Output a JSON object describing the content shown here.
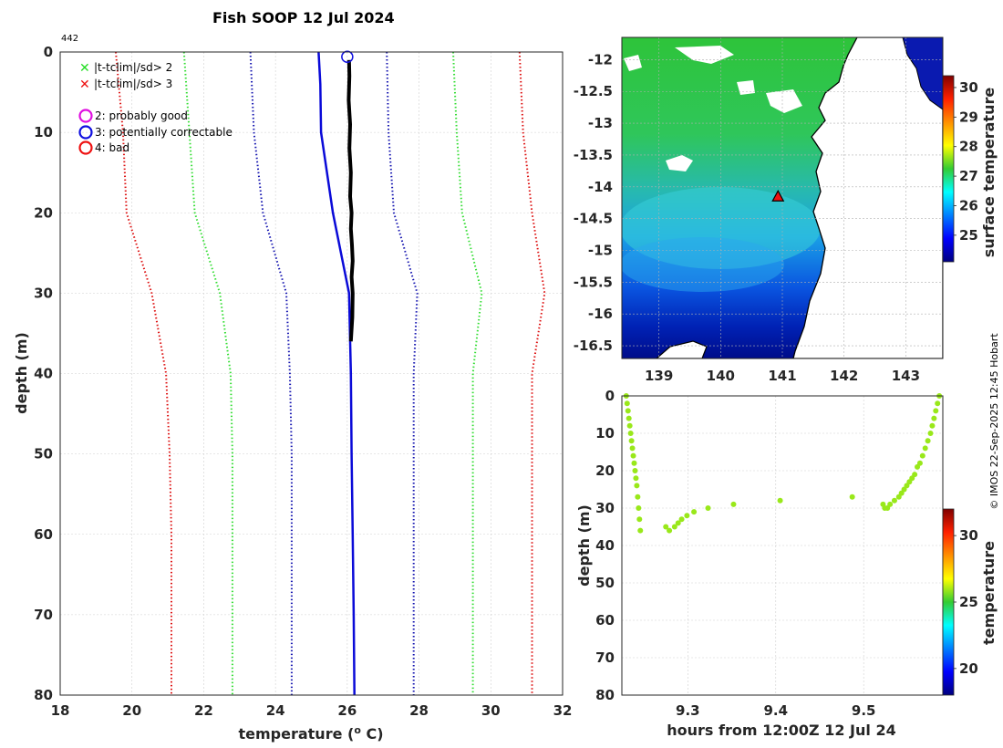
{
  "title": "Fish SOOP 12 Jul 2024",
  "profile_id": "442",
  "credit": "© IMOS 22-Sep-2025 12:45 Hobart",
  "legend": {
    "flags": [
      {
        "label": "|t-tclim|/sd> 2",
        "color": "#22dd22",
        "marker": "x"
      },
      {
        "label": "|t-tclim|/sd> 3",
        "color": "#ee1111",
        "marker": "x"
      }
    ],
    "qc": [
      {
        "label": "2: probably good",
        "color": "#e010e0"
      },
      {
        "label": "3: potentially correctable",
        "color": "#1010e0"
      },
      {
        "label": "4: bad",
        "color": "#ee1111"
      }
    ]
  },
  "colors": {
    "red": "#dd1111",
    "green": "#33dd33",
    "blue_dot": "#1515b0",
    "blue": "#0a0ad8",
    "black": "#000000",
    "scatter": "#99e81a",
    "grid": "#d0d0d0"
  },
  "chart_data": [
    {
      "id": "profile",
      "type": "line",
      "xlabel": "temperature (o C)",
      "ylabel": "depth (m)",
      "xlim": [
        18,
        32
      ],
      "ylim": [
        80,
        0
      ],
      "xticks": [
        18,
        20,
        22,
        24,
        26,
        28,
        30,
        32
      ],
      "yticks": [
        0,
        10,
        20,
        30,
        40,
        50,
        60,
        70,
        80
      ],
      "grid": true,
      "series": [
        {
          "name": "clim -3sd",
          "style": "dotted",
          "color": "red",
          "x": [
            19.55,
            19.75,
            19.85,
            20.55,
            20.95,
            21.05,
            21.1,
            21.1
          ],
          "y": [
            0,
            10,
            20,
            30,
            40,
            50,
            60,
            80
          ]
        },
        {
          "name": "clim -2sd",
          "style": "dotted",
          "color": "green",
          "x": [
            21.45,
            21.6,
            21.75,
            22.45,
            22.75,
            22.8,
            22.8,
            22.8
          ],
          "y": [
            0,
            10,
            20,
            30,
            40,
            50,
            60,
            80
          ]
        },
        {
          "name": "clim -1sd",
          "style": "dotted",
          "color": "blue_dot",
          "x": [
            23.3,
            23.4,
            23.65,
            24.3,
            24.4,
            24.45,
            24.45,
            24.45
          ],
          "y": [
            0,
            10,
            20,
            30,
            40,
            50,
            60,
            80
          ]
        },
        {
          "name": "climatology",
          "style": "solid",
          "color": "blue",
          "x": [
            25.2,
            25.25,
            25.27,
            25.6,
            26.05,
            26.1,
            26.12,
            26.15,
            26.18,
            26.2
          ],
          "y": [
            0,
            4,
            10,
            20,
            30,
            40,
            50,
            60,
            70,
            80
          ]
        },
        {
          "name": "clim +1sd",
          "style": "dotted",
          "color": "blue_dot",
          "x": [
            27.1,
            27.15,
            27.3,
            27.95,
            27.85,
            27.85,
            27.85,
            27.85
          ],
          "y": [
            0,
            10,
            20,
            30,
            40,
            50,
            60,
            80
          ]
        },
        {
          "name": "clim +2sd",
          "style": "dotted",
          "color": "green",
          "x": [
            28.95,
            29.05,
            29.2,
            29.75,
            29.5,
            29.5,
            29.5,
            29.5
          ],
          "y": [
            0,
            10,
            20,
            30,
            40,
            50,
            60,
            80
          ]
        },
        {
          "name": "clim +3sd",
          "style": "dotted",
          "color": "red",
          "x": [
            30.8,
            30.9,
            31.15,
            31.5,
            31.15,
            31.15,
            31.15,
            31.15
          ],
          "y": [
            0,
            10,
            20,
            30,
            40,
            50,
            60,
            80
          ]
        },
        {
          "name": "observed",
          "style": "thick",
          "color": "black",
          "x": [
            26.05,
            26.06,
            26.04,
            26.08,
            26.06,
            26.1,
            26.08,
            26.12,
            26.1,
            26.13,
            26.15,
            26.12,
            26.15,
            26.14,
            26.1
          ],
          "y": [
            1,
            3,
            6,
            9,
            12,
            15,
            18,
            20,
            22,
            24,
            26,
            28,
            30,
            33,
            36
          ]
        }
      ],
      "qc_marker": {
        "x": 26.0,
        "y": 0.6,
        "flag": 3
      }
    },
    {
      "id": "sst_map",
      "type": "heatmap",
      "colorbar_label": "surface temperature",
      "xlim": [
        138.4,
        143.6
      ],
      "ylim": [
        -16.7,
        -11.65
      ],
      "xticks": [
        139,
        140,
        141,
        142,
        143
      ],
      "yticks": [
        -12,
        -12.5,
        -13,
        -13.5,
        -14,
        -14.5,
        -15,
        -15.5,
        -16,
        -16.5
      ],
      "clim": [
        24.1,
        30.4
      ],
      "cticks": [
        25,
        26,
        27,
        28,
        29,
        30
      ],
      "grid": true,
      "station": {
        "lon": 140.93,
        "lat": -14.15
      }
    },
    {
      "id": "time_depth",
      "type": "scatter",
      "xlabel": "hours from 12:00Z 12 Jul 24",
      "ylabel": "depth (m)",
      "xlim": [
        9.225,
        9.59
      ],
      "ylim": [
        80,
        0
      ],
      "xticks": [
        9.3,
        9.4,
        9.5
      ],
      "yticks": [
        0,
        10,
        20,
        30,
        40,
        50,
        60,
        70,
        80
      ],
      "colorbar_label": "temperature",
      "clim": [
        18,
        32
      ],
      "cticks": [
        20,
        25,
        30
      ],
      "grid": true,
      "x": [
        9.23,
        9.231,
        9.232,
        9.233,
        9.234,
        9.235,
        9.236,
        9.237,
        9.238,
        9.239,
        9.24,
        9.241,
        9.242,
        9.243,
        9.244,
        9.245,
        9.246,
        9.275,
        9.279,
        9.285,
        9.289,
        9.293,
        9.299,
        9.307,
        9.323,
        9.352,
        9.405,
        9.487,
        9.522,
        9.524,
        9.527,
        9.53,
        9.535,
        9.54,
        9.543,
        9.546,
        9.549,
        9.552,
        9.555,
        9.558,
        9.561,
        9.564,
        9.567,
        9.57,
        9.573,
        9.576,
        9.578,
        9.58,
        9.582,
        9.584,
        9.586
      ],
      "y": [
        0,
        2,
        4,
        6,
        8,
        10,
        12,
        14,
        16,
        18,
        20,
        22,
        24,
        27,
        30,
        33,
        36,
        35,
        36,
        35,
        34,
        33,
        32,
        31,
        30,
        29,
        28,
        27,
        29,
        30,
        30,
        29,
        28,
        27,
        26,
        25,
        24,
        23,
        22,
        21,
        19,
        18,
        16,
        14,
        12,
        10,
        8,
        6,
        4,
        2,
        0
      ]
    }
  ]
}
